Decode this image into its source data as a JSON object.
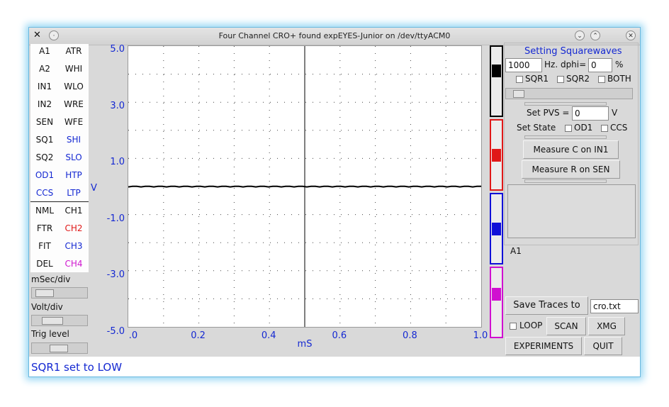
{
  "window": {
    "title": "Four Channel CRO+ found expEYES-Junior on /dev/ttyACM0"
  },
  "left_panel": {
    "rows": [
      {
        "a": "A1",
        "b": "ATR",
        "a_color": "#111111",
        "b_color": "#111111"
      },
      {
        "a": "A2",
        "b": "WHI",
        "a_color": "#111111",
        "b_color": "#111111"
      },
      {
        "a": "IN1",
        "b": "WLO",
        "a_color": "#111111",
        "b_color": "#111111"
      },
      {
        "a": "IN2",
        "b": "WRE",
        "a_color": "#111111",
        "b_color": "#111111"
      },
      {
        "a": "SEN",
        "b": "WFE",
        "a_color": "#111111",
        "b_color": "#111111"
      },
      {
        "a": "SQ1",
        "b": "SHI",
        "a_color": "#111111",
        "b_color": "#1428d2"
      },
      {
        "a": "SQ2",
        "b": "SLO",
        "a_color": "#111111",
        "b_color": "#1428d2"
      },
      {
        "a": "OD1",
        "b": "HTP",
        "a_color": "#1428d2",
        "b_color": "#1428d2"
      },
      {
        "a": "CCS",
        "b": "LTP",
        "a_color": "#1428d2",
        "b_color": "#1428d2"
      },
      {
        "a": "NML",
        "b": "CH1",
        "a_color": "#111111",
        "b_color": "#111111"
      },
      {
        "a": "FTR",
        "b": "CH2",
        "a_color": "#111111",
        "b_color": "#e01818"
      },
      {
        "a": "FIT",
        "b": "CH3",
        "a_color": "#111111",
        "b_color": "#1428d2"
      },
      {
        "a": "DEL",
        "b": "CH4",
        "a_color": "#111111",
        "b_color": "#d018d0"
      }
    ],
    "msec_label": "mSec/div",
    "volt_label": "Volt/div",
    "trig_label": "Trig level",
    "msec_value": 0.05,
    "volt_value": 0.25,
    "trig_value": 0.45
  },
  "plot": {
    "y_ticks": [
      "5.0",
      "3.0",
      "1.0",
      "-1.0",
      "-3.0",
      "-5.0"
    ],
    "x_ticks": [
      ".0",
      "0.2",
      "0.4",
      "0.6",
      "0.8",
      "1.0"
    ],
    "y_unit": "V",
    "x_unit": "mS",
    "ylim": [
      -5,
      5
    ],
    "xlim": [
      0,
      1
    ],
    "trace_level": 0
  },
  "channels": [
    {
      "name": "ch1-selector",
      "color": "#000000",
      "level": 0.35
    },
    {
      "name": "ch2-selector",
      "color": "#e01818",
      "level": 0.5
    },
    {
      "name": "ch3-selector",
      "color": "#1010d8",
      "level": 0.5
    },
    {
      "name": "ch4-selector",
      "color": "#d010d0",
      "level": 0.38
    }
  ],
  "right_panel": {
    "heading": "Setting Squarewaves",
    "freq_value": "1000",
    "freq_unit": "Hz. dphi=",
    "dphi_value": "0",
    "dphi_unit": "%",
    "sqr1": "SQR1",
    "sqr2": "SQR2",
    "both": "BOTH",
    "pvs_label": "Set PVS =",
    "pvs_value": "0",
    "pvs_unit": "V",
    "state_label": "Set State",
    "od1": "OD1",
    "ccs": "CCS",
    "measure_c": "Measure C on IN1",
    "measure_r": "Measure R on SEN",
    "result_text": "",
    "selected_label": "A1",
    "save_button": "Save Traces to",
    "filename": "cro.txt",
    "loop": "LOOP",
    "scan": "SCAN",
    "xmg": "XMG",
    "experiments": "EXPERIMENTS",
    "quit": "QUIT",
    "freq_slider_value": 0.05
  },
  "status": {
    "message": "SQR1 set to LOW"
  }
}
